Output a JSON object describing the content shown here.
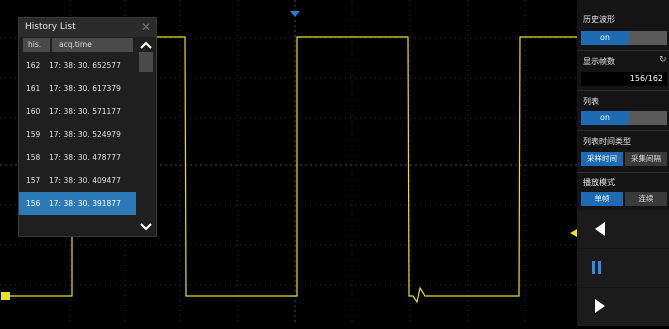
{
  "history_panel": {
    "title": "History List",
    "columns": [
      "his.",
      "acq.time"
    ],
    "rows": [
      {
        "index": "162",
        "time": "17: 38: 30. 652577",
        "selected": false
      },
      {
        "index": "161",
        "time": "17: 38: 30. 617379",
        "selected": false
      },
      {
        "index": "160",
        "time": "17: 38: 30. 571177",
        "selected": false
      },
      {
        "index": "159",
        "time": "17: 38: 30. 524979",
        "selected": false
      },
      {
        "index": "158",
        "time": "17: 38: 30. 478777",
        "selected": false
      },
      {
        "index": "157",
        "time": "17: 38: 30. 409477",
        "selected": false
      },
      {
        "index": "156",
        "time": "17: 38: 30. 391877",
        "selected": true
      }
    ]
  },
  "menu": {
    "history_wave": {
      "label": "历史波形",
      "state": "on"
    },
    "frame_count": {
      "label": "显示帧数",
      "value": "156/162"
    },
    "list": {
      "label": "列表",
      "state": "on"
    },
    "list_time_type": {
      "label": "列表时间类型",
      "options": [
        "采样时间",
        "采集间隔"
      ],
      "selected": "采样时间"
    },
    "play_mode": {
      "label": "播放模式",
      "options": [
        "单帧",
        "连续"
      ],
      "selected": "单帧"
    }
  },
  "colors": {
    "trace": "#e8e02a",
    "accent": "#1e6ab3",
    "trigger_marker": "#2b7ad8"
  }
}
